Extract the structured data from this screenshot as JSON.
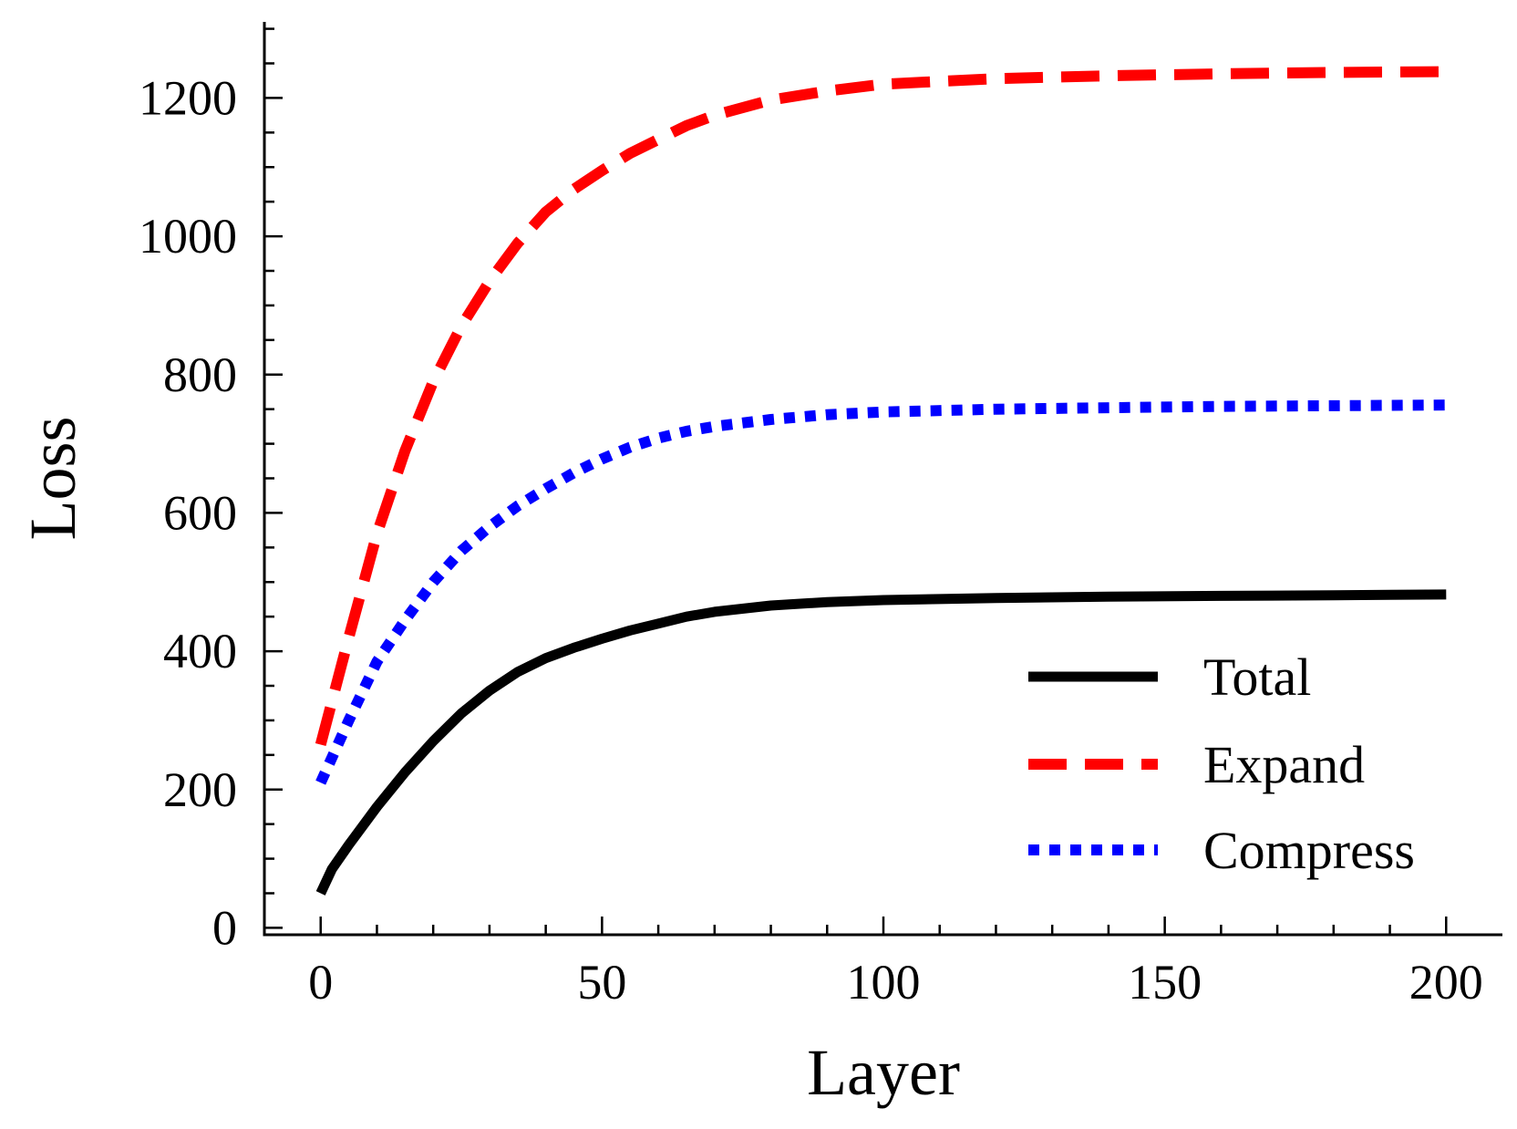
{
  "chart_data": {
    "type": "line",
    "title": "",
    "xlabel": "Layer",
    "ylabel": "Loss",
    "xlim": [
      -10,
      210
    ],
    "ylim": [
      -10,
      1310
    ],
    "xticks": [
      0,
      50,
      100,
      150,
      200
    ],
    "xtick_labels": [
      "0",
      "50",
      "100",
      "150",
      "200"
    ],
    "yticks": [
      0,
      200,
      400,
      600,
      800,
      1000,
      1200
    ],
    "ytick_labels": [
      "0",
      "200",
      "400",
      "600",
      "800",
      "1000",
      "1200"
    ],
    "grid": false,
    "legend": "bottom-right",
    "series": [
      {
        "name": "Total",
        "color": "#000000",
        "style": "solid",
        "x": [
          0,
          2,
          5,
          10,
          15,
          20,
          25,
          30,
          35,
          40,
          45,
          50,
          55,
          60,
          65,
          70,
          80,
          90,
          100,
          120,
          140,
          160,
          180,
          200
        ],
        "y": [
          50,
          85,
          120,
          175,
          225,
          270,
          310,
          343,
          370,
          390,
          405,
          418,
          430,
          440,
          450,
          457,
          466,
          471,
          474,
          477,
          479,
          480,
          481,
          482
        ]
      },
      {
        "name": "Expand",
        "color": "#ff0000",
        "style": "dashed",
        "x": [
          0,
          5,
          10,
          15,
          20,
          25,
          30,
          35,
          40,
          45,
          50,
          55,
          60,
          65,
          70,
          80,
          90,
          100,
          120,
          140,
          160,
          180,
          200
        ],
        "y": [
          265,
          420,
          570,
          690,
          790,
          870,
          935,
          990,
          1035,
          1068,
          1095,
          1120,
          1140,
          1160,
          1175,
          1197,
          1210,
          1220,
          1228,
          1232,
          1235,
          1237,
          1238
        ]
      },
      {
        "name": "Compress",
        "color": "#0000ff",
        "style": "dotted",
        "x": [
          0,
          5,
          10,
          15,
          20,
          25,
          30,
          35,
          40,
          45,
          50,
          55,
          60,
          65,
          70,
          80,
          90,
          100,
          120,
          140,
          160,
          180,
          200
        ],
        "y": [
          210,
          300,
          385,
          445,
          500,
          545,
          580,
          610,
          635,
          658,
          678,
          695,
          708,
          718,
          725,
          735,
          742,
          746,
          750,
          752,
          754,
          755,
          756
        ]
      }
    ]
  }
}
